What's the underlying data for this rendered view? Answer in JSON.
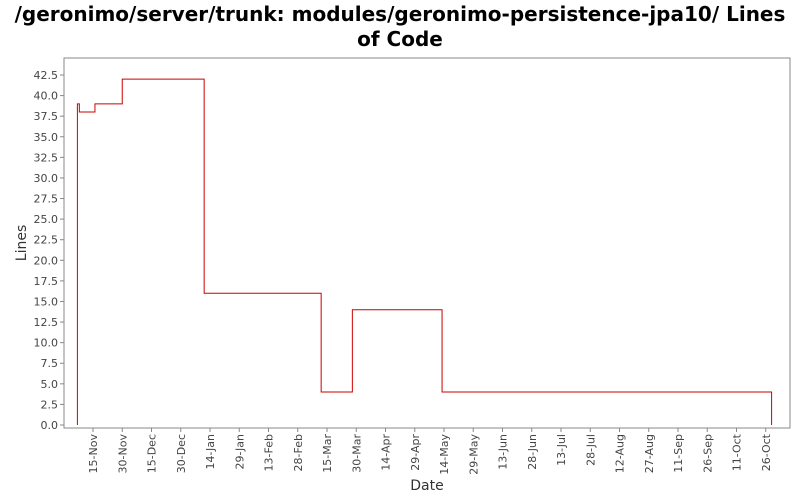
{
  "chart_data": {
    "type": "line",
    "step": true,
    "title": "/geronimo/server/trunk: modules/geronimo-persistence-jpa10/ Lines of Code",
    "xlabel": "Date",
    "ylabel": "Lines",
    "ylim": [
      0,
      43.5
    ],
    "yticks": [
      "0.0",
      "2.5",
      "5.0",
      "7.5",
      "10.0",
      "12.5",
      "15.0",
      "17.5",
      "20.0",
      "22.5",
      "25.0",
      "27.5",
      "30.0",
      "32.5",
      "35.0",
      "37.5",
      "40.0",
      "42.5"
    ],
    "xticks": [
      "15-Nov",
      "30-Nov",
      "15-Dec",
      "30-Dec",
      "14-Jan",
      "29-Jan",
      "13-Feb",
      "28-Feb",
      "15-Mar",
      "30-Mar",
      "14-Apr",
      "29-Apr",
      "14-May",
      "29-May",
      "13-Jun",
      "28-Jun",
      "13-Jul",
      "28-Jul",
      "12-Aug",
      "27-Aug",
      "11-Sep",
      "26-Sep",
      "11-Oct",
      "26-Oct"
    ],
    "grid": false,
    "line_color": "#cc0000",
    "series": [
      {
        "x": [
          "07-Nov",
          "08-Nov",
          "16-Nov",
          "30-Nov",
          "11-Jan",
          "12-Mar",
          "28-Mar",
          "13-May",
          "29-Oct"
        ],
        "values": [
          39,
          38,
          39,
          42,
          16,
          4,
          14,
          4,
          4
        ],
        "drop_to_zero_at_end": true,
        "start_from_zero": true
      }
    ]
  }
}
